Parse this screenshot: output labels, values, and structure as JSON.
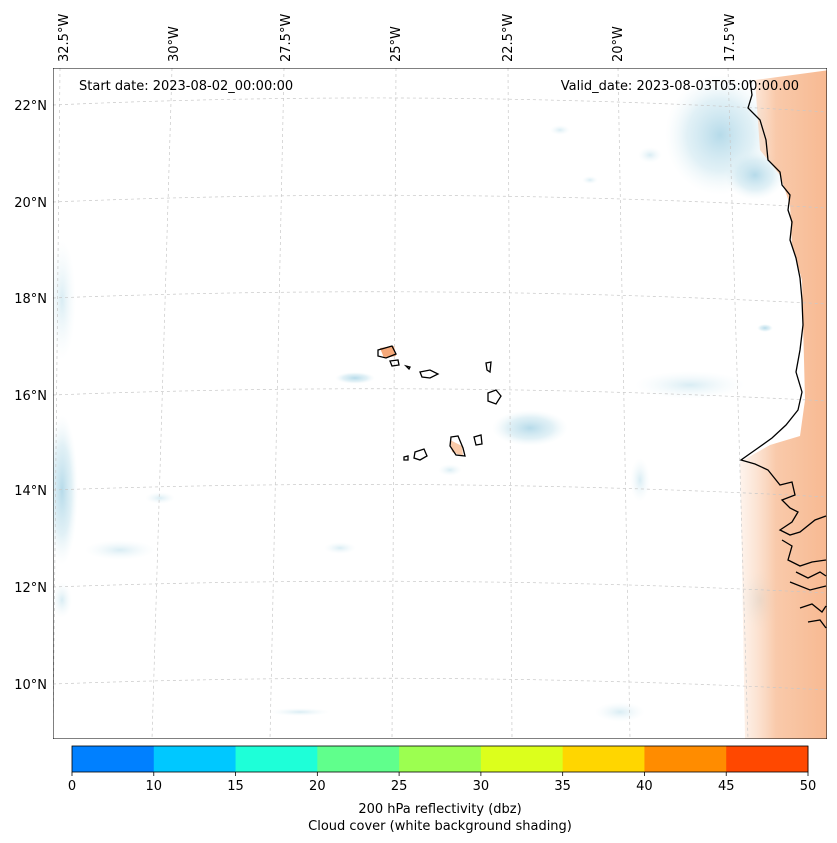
{
  "annotations": {
    "start_date": "Start date: 2023-08-02_00:00:00",
    "valid_date": "Valid_date: 2023-08-03T05:00:00.00"
  },
  "longitude_labels": [
    "32.5°W",
    "30°W",
    "27.5°W",
    "25°W",
    "22.5°W",
    "20°W",
    "17.5°W"
  ],
  "latitude_labels": [
    "22°N",
    "20°N",
    "18°N",
    "16°N",
    "14°N",
    "12°N",
    "10°N"
  ],
  "colorbar": {
    "ticks": [
      "0",
      "10",
      "15",
      "20",
      "25",
      "30",
      "35",
      "40",
      "45",
      "50"
    ],
    "colors": [
      "#0080ff",
      "#00c8ff",
      "#1effd8",
      "#60ff8c",
      "#9cff50",
      "#dcff1c",
      "#ffd600",
      "#ff8c00",
      "#ff4800"
    ],
    "label_line1": "200 hPa reflectivity (dbz)",
    "label_line2": "Cloud cover (white background shading)"
  },
  "map_colors": {
    "cloud_blue": "#b9dcea",
    "warm_orange": "#f7b48a",
    "coast": "#000000",
    "grid": "#c8c8c8"
  }
}
